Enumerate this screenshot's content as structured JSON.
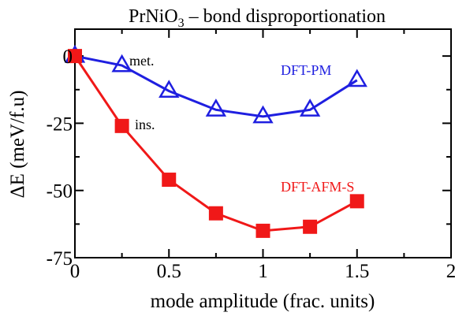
{
  "chart_data": {
    "type": "line",
    "title": "PrNiO₃ – bond disproportionation",
    "title_parts": {
      "main": "PrNiO",
      "subscript": "3",
      "rest": " – bond disproportionation"
    },
    "xlabel": "mode amplitude (frac. units)",
    "ylabel": "ΔE (meV/f.u)",
    "xlim": [
      0,
      2
    ],
    "ylim": [
      -75,
      10
    ],
    "xticks": [
      0,
      0.5,
      1,
      1.5,
      2
    ],
    "xtick_labels": [
      "0",
      "0.5",
      "1",
      "1.5",
      "2"
    ],
    "yticks": [
      0,
      -25,
      -50,
      -75
    ],
    "ytick_labels": [
      "0",
      "-25",
      "-50",
      "-75"
    ],
    "grid": false,
    "series": [
      {
        "name": "DFT-PM",
        "color": "#1f1fe0",
        "marker": "open-triangle",
        "x": [
          0,
          0.25,
          0.5,
          0.75,
          1.0,
          1.25,
          1.5
        ],
        "y": [
          0,
          -3.5,
          -13,
          -20,
          -22.5,
          -20,
          -9
        ]
      },
      {
        "name": "DFT-AFM-S",
        "color": "#f01818",
        "marker": "filled-square",
        "x": [
          0,
          0.25,
          0.5,
          0.75,
          1.0,
          1.25,
          1.5
        ],
        "y": [
          0,
          -26,
          -46,
          -58.5,
          -65,
          -63.5,
          -54
        ]
      }
    ],
    "annotations": [
      {
        "text": "met.",
        "color": "#000000"
      },
      {
        "text": "ins.",
        "color": "#000000"
      }
    ]
  }
}
